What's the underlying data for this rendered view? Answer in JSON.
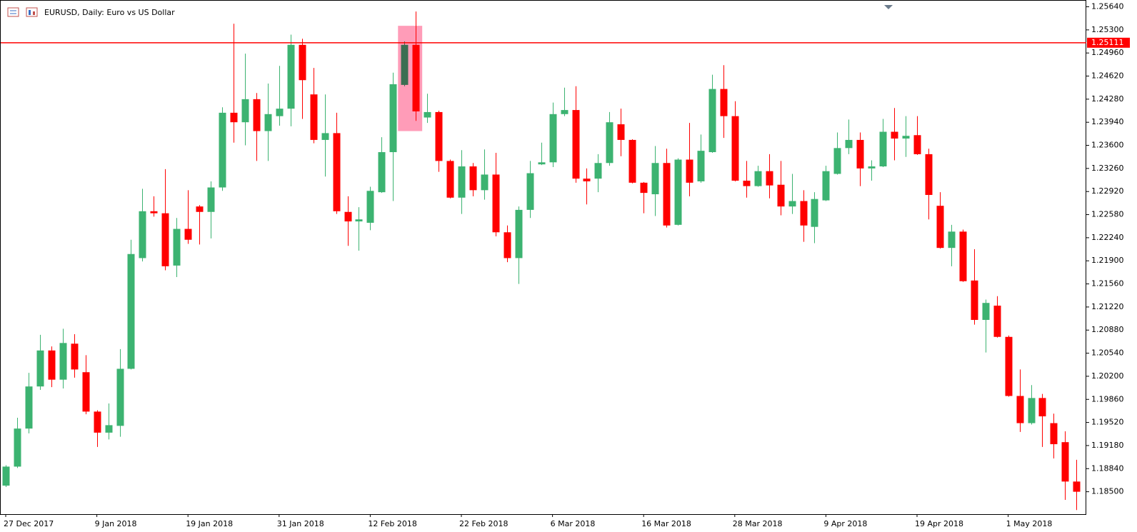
{
  "chart_data": {
    "type": "candlestick",
    "title": "EURUSD, Daily:  Euro vs US Dollar",
    "up_color": "#3cb371",
    "down_color": "#ff0000",
    "categories": [
      "27 Dec 2017",
      null,
      null,
      null,
      null,
      null,
      null,
      null,
      "9 Jan 2018",
      null,
      null,
      null,
      null,
      null,
      null,
      null,
      "19 Jan 2018",
      null,
      null,
      null,
      null,
      null,
      null,
      null,
      "31 Jan 2018",
      null,
      null,
      null,
      null,
      null,
      null,
      null,
      "12 Feb 2018",
      null,
      null,
      null,
      null,
      null,
      null,
      null,
      "22 Feb 2018",
      null,
      null,
      null,
      null,
      null,
      null,
      null,
      "6 Mar 2018",
      null,
      null,
      null,
      null,
      null,
      null,
      null,
      "16 Mar 2018",
      null,
      null,
      null,
      null,
      null,
      null,
      null,
      "28 Mar 2018",
      null,
      null,
      null,
      null,
      null,
      null,
      null,
      "9 Apr 2018",
      null,
      null,
      null,
      null,
      null,
      null,
      null,
      "19 Apr 2018",
      null,
      null,
      null,
      null,
      null,
      null,
      null,
      "1 May 2018",
      null,
      null,
      null,
      null,
      null,
      null
    ],
    "open": [
      1.1859,
      1.1887,
      1.1943,
      1.2005,
      1.2058,
      1.2015,
      1.2068,
      1.2026,
      1.1968,
      1.1937,
      1.1947,
      1.2031,
      1.2194,
      1.2263,
      1.226,
      1.2183,
      1.2237,
      1.227,
      1.2262,
      1.2298,
      1.2408,
      1.2394,
      1.2428,
      1.2381,
      1.2403,
      1.2414,
      1.2508,
      1.2435,
      1.2368,
      1.2378,
      1.2262,
      1.2248,
      1.2246,
      1.2291,
      1.235,
      1.2449,
      1.2508,
      1.2401,
      1.2409,
      1.2337,
      1.2283,
      1.2329,
      1.2294,
      1.2317,
      1.2232,
      1.2194,
      1.2265,
      1.2332,
      1.2335,
      1.2406,
      1.2412,
      1.2311,
      1.2311,
      1.2334,
      1.2391,
      1.2368,
      1.2305,
      1.2288,
      1.2334,
      1.2243,
      1.2339,
      1.2307,
      1.235,
      1.2443,
      1.2403,
      1.2308,
      1.23,
      1.2322,
      1.2302,
      1.227,
      1.2278,
      1.224,
      1.2279,
      1.2318,
      1.2356,
      1.2368,
      1.2326,
      1.2329,
      1.238,
      1.237,
      1.2375,
      1.2347,
      1.2271,
      1.2209,
      1.2233,
      1.2161,
      1.2103,
      1.2124,
      1.2078,
      1.1991,
      1.1951,
      1.1988,
      1.1951,
      1.1923,
      1.1865
    ],
    "high": [
      1.1889,
      1.1959,
      1.2025,
      1.2081,
      1.2064,
      1.209,
      1.2082,
      1.2051,
      1.197,
      1.198,
      1.206,
      1.2221,
      1.2296,
      1.2285,
      1.2325,
      1.2253,
      1.2294,
      1.2272,
      1.2307,
      1.2416,
      1.2539,
      1.2495,
      1.2437,
      1.2451,
      1.2477,
      1.2523,
      1.2517,
      1.2474,
      1.2435,
      1.2408,
      1.2285,
      1.2269,
      1.2299,
      1.2372,
      1.2467,
      1.2513,
      1.2557,
      1.2436,
      1.2411,
      1.2339,
      1.2353,
      1.2334,
      1.2354,
      1.2349,
      1.2242,
      1.227,
      1.2337,
      1.2364,
      1.2423,
      1.2445,
      1.2447,
      1.2326,
      1.2347,
      1.2409,
      1.2414,
      1.2369,
      1.2306,
      1.2359,
      1.2355,
      1.2341,
      1.2393,
      1.2376,
      1.2464,
      1.2478,
      1.2425,
      1.2337,
      1.233,
      1.2347,
      1.2337,
      1.2318,
      1.2294,
      1.2291,
      1.233,
      1.2379,
      1.2398,
      1.2379,
      1.2338,
      1.2399,
      1.2415,
      1.2403,
      1.2403,
      1.2355,
      1.2291,
      1.2243,
      1.2236,
      1.2207,
      1.2133,
      1.2138,
      1.208,
      1.203,
      1.2007,
      1.1994,
      1.1965,
      1.1939,
      1.1897
    ],
    "low": [
      1.1857,
      1.1885,
      1.1936,
      1.2,
      1.2004,
      1.2002,
      1.2018,
      1.1964,
      1.1916,
      1.1927,
      1.1931,
      1.203,
      1.2189,
      1.2255,
      1.2176,
      1.2166,
      1.2215,
      1.2214,
      1.2223,
      1.2293,
      1.2364,
      1.236,
      1.2337,
      1.2337,
      1.2389,
      1.2388,
      1.2399,
      1.2363,
      1.2314,
      1.2259,
      1.2212,
      1.2205,
      1.2235,
      1.229,
      1.2278,
      1.2447,
      1.2396,
      1.2393,
      1.2321,
      1.2282,
      1.2259,
      1.2285,
      1.228,
      1.2226,
      1.2188,
      1.2156,
      1.2253,
      1.2331,
      1.2328,
      1.2403,
      1.2305,
      1.2273,
      1.2291,
      1.233,
      1.2344,
      1.2304,
      1.226,
      1.2256,
      1.2239,
      1.2242,
      1.2285,
      1.2305,
      1.2349,
      1.2371,
      1.2307,
      1.2283,
      1.2299,
      1.2282,
      1.2257,
      1.2259,
      1.2218,
      1.2216,
      1.2278,
      1.2317,
      1.2347,
      1.23,
      1.2308,
      1.2328,
      1.2338,
      1.2343,
      1.2346,
      1.2251,
      1.2208,
      1.2182,
      1.2159,
      1.2096,
      1.2055,
      1.2077,
      1.199,
      1.1938,
      1.1949,
      1.1916,
      1.1899,
      1.1838,
      1.1823
    ],
    "close": [
      1.1887,
      1.1943,
      1.2005,
      1.2058,
      1.2015,
      1.2069,
      1.203,
      1.1968,
      1.1937,
      1.1948,
      1.2031,
      1.22,
      1.2263,
      1.226,
      1.2182,
      1.2237,
      1.2221,
      1.2262,
      1.2298,
      1.2408,
      1.2394,
      1.2428,
      1.2381,
      1.2406,
      1.2414,
      1.2508,
      1.2456,
      1.2368,
      1.2378,
      1.2263,
      1.2248,
      1.2251,
      1.2293,
      1.235,
      1.245,
      1.2508,
      1.241,
      1.2409,
      1.2337,
      1.2283,
      1.2329,
      1.2294,
      1.2317,
      1.2232,
      1.2194,
      1.2265,
      1.2319,
      1.2335,
      1.2406,
      1.2412,
      1.2311,
      1.2307,
      1.2334,
      1.2394,
      1.2368,
      1.2305,
      1.229,
      1.2334,
      1.2242,
      1.2339,
      1.2305,
      1.2352,
      1.2443,
      1.2403,
      1.2308,
      1.23,
      1.2322,
      1.2301,
      1.227,
      1.2278,
      1.2242,
      1.2281,
      1.2322,
      1.2356,
      1.2368,
      1.2326,
      1.2329,
      1.238,
      1.237,
      1.2374,
      1.2347,
      1.2287,
      1.2209,
      1.2233,
      1.216,
      1.2103,
      1.2128,
      1.2078,
      1.1991,
      1.1951,
      1.1988,
      1.1961,
      1.192,
      1.1865,
      1.185
    ],
    "ylim": [
      1.1817,
      1.2574
    ],
    "yticks": [
      {
        "value": 1.2564,
        "label": "1.25640"
      },
      {
        "value": 1.253,
        "label": "1.25300"
      },
      {
        "value": 1.2496,
        "label": "1.24960"
      },
      {
        "value": 1.2462,
        "label": "1.24620"
      },
      {
        "value": 1.2428,
        "label": "1.24280"
      },
      {
        "value": 1.2394,
        "label": "1.23940"
      },
      {
        "value": 1.236,
        "label": "1.23600"
      },
      {
        "value": 1.2326,
        "label": "1.23260"
      },
      {
        "value": 1.2292,
        "label": "1.22920"
      },
      {
        "value": 1.2258,
        "label": "1.22580"
      },
      {
        "value": 1.2224,
        "label": "1.22240"
      },
      {
        "value": 1.219,
        "label": "1.21900"
      },
      {
        "value": 1.2156,
        "label": "1.21560"
      },
      {
        "value": 1.2122,
        "label": "1.21220"
      },
      {
        "value": 1.2088,
        "label": "1.20880"
      },
      {
        "value": 1.2054,
        "label": "1.20540"
      },
      {
        "value": 1.202,
        "label": "1.20200"
      },
      {
        "value": 1.1986,
        "label": "1.19860"
      },
      {
        "value": 1.1952,
        "label": "1.19520"
      },
      {
        "value": 1.1918,
        "label": "1.19180"
      },
      {
        "value": 1.1884,
        "label": "1.18840"
      },
      {
        "value": 1.185,
        "label": "1.18500"
      }
    ],
    "hline": {
      "value": 1.25111,
      "color": "#ff0000"
    },
    "highlight": {
      "from": 35,
      "to": 36,
      "high": 1.2536,
      "low": 1.2381,
      "color": "#ff9cb8"
    }
  }
}
